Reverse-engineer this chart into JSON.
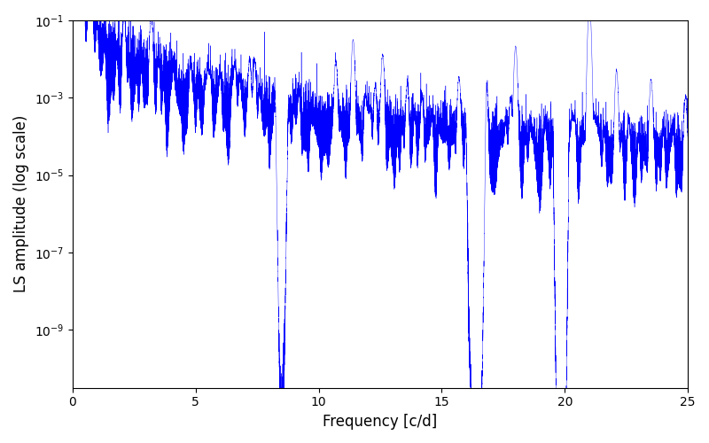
{
  "title": "",
  "xlabel": "Frequency [c/d]",
  "ylabel": "LS amplitude (log scale)",
  "line_color": "#0000ff",
  "xlim": [
    0,
    25
  ],
  "ylim_log": [
    -10.5,
    -1
  ],
  "yticks": [
    1e-09,
    1e-07,
    1e-05,
    0.001,
    0.1
  ],
  "yscale": "log",
  "background": "#ffffff",
  "figsize": [
    8.0,
    5.0
  ],
  "dpi": 100,
  "seed": 42
}
